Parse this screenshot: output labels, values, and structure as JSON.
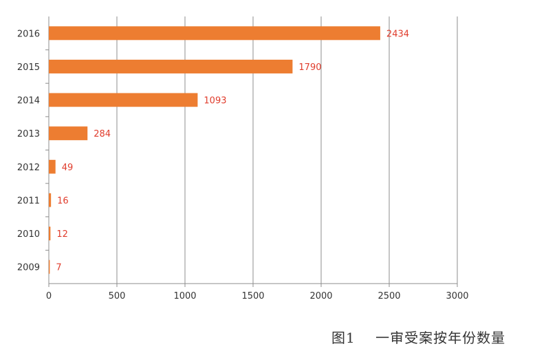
{
  "caption": "图1    一审受案按年份数量",
  "chart_data": {
    "type": "bar",
    "orientation": "horizontal",
    "categories": [
      "2016",
      "2015",
      "2014",
      "2013",
      "2012",
      "2011",
      "2010",
      "2009"
    ],
    "values": [
      2434,
      1790,
      1093,
      284,
      49,
      16,
      12,
      7
    ],
    "xlim": [
      0,
      3000
    ],
    "xticks": [
      "0",
      "500",
      "1000",
      "1500",
      "2000",
      "2500",
      "3000"
    ],
    "grid": true,
    "bar_color": "#ed7d31",
    "label_color": "#e03c2c",
    "title": "",
    "xlabel": "",
    "ylabel": ""
  }
}
